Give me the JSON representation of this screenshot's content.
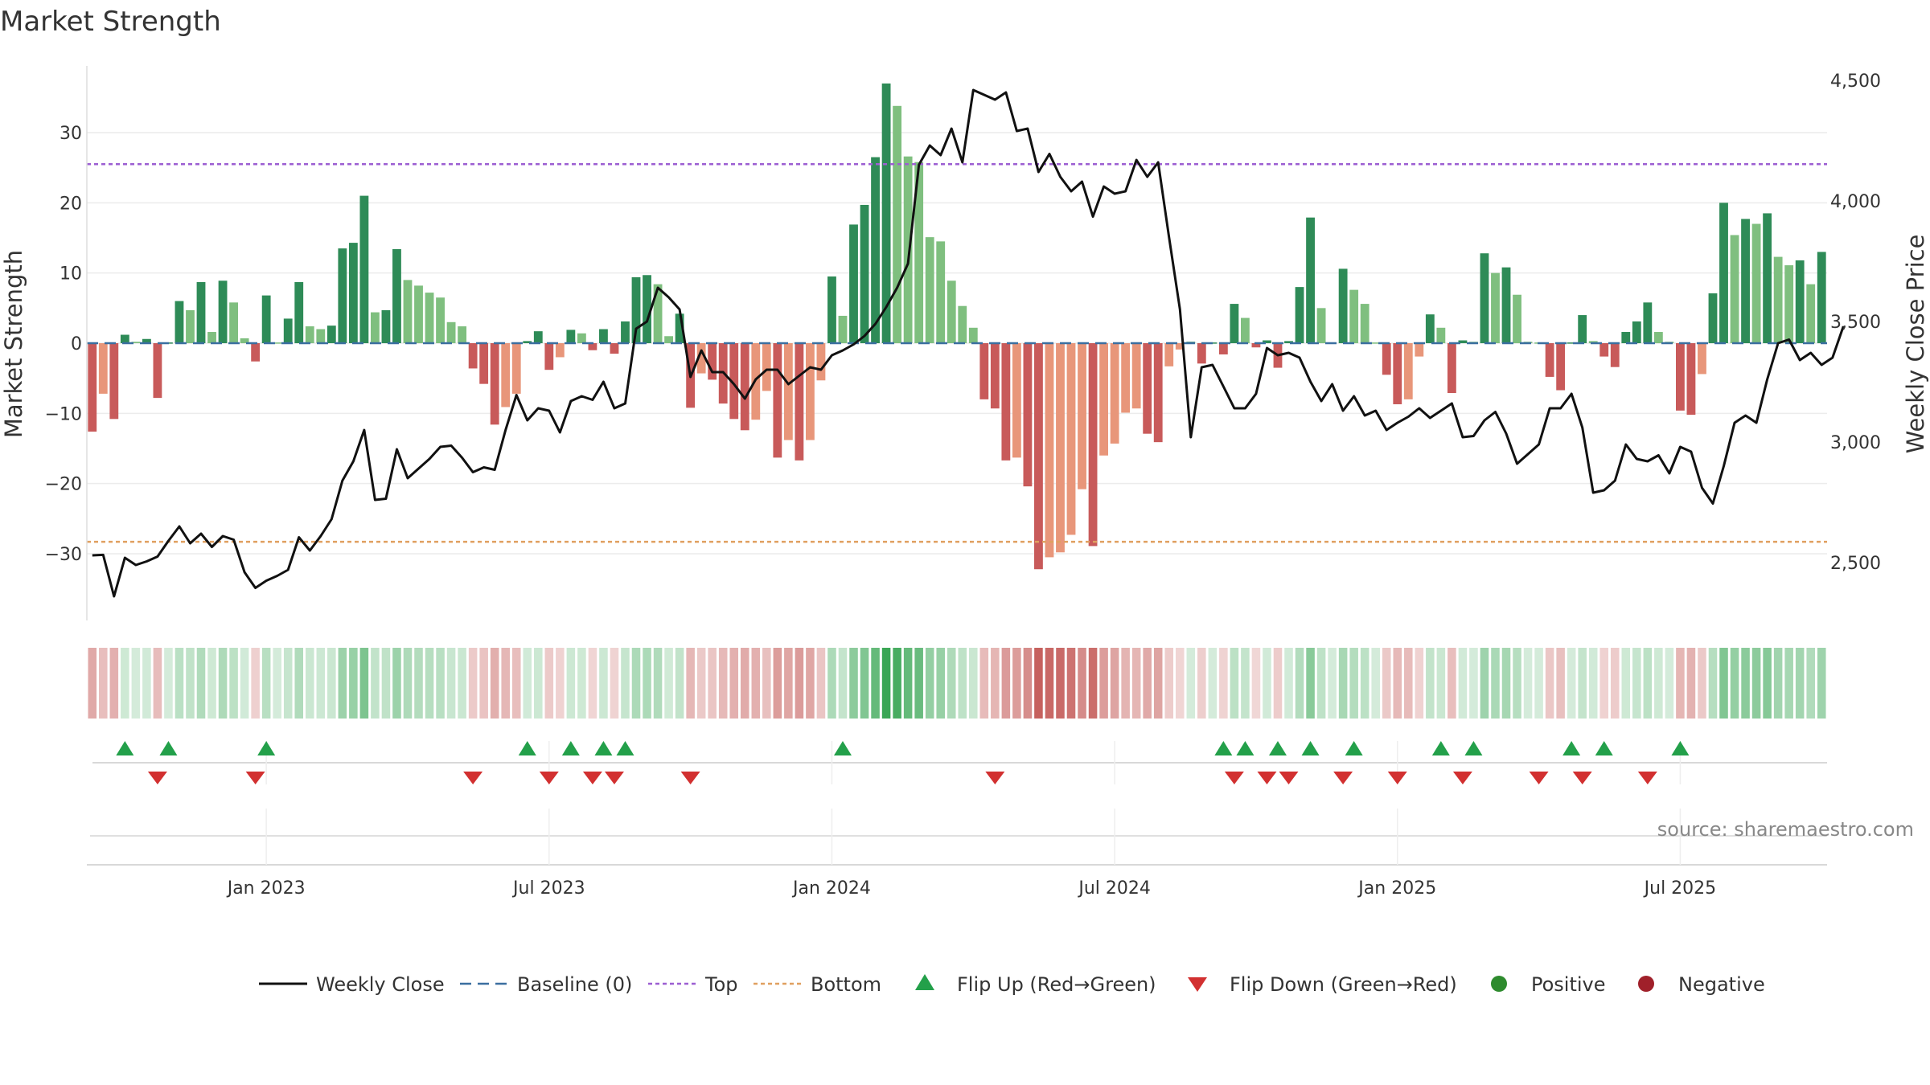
{
  "chart_data": {
    "type": "bar",
    "title": "Market Strength",
    "ylabel_left": "Market Strength",
    "ylabel_right": "Weekly Close Price",
    "y_left_range": [
      -39.5,
      39.5
    ],
    "y_left_ticks": [
      30,
      20,
      10,
      0,
      -10,
      -20,
      -30
    ],
    "y_left_tick_labels": [
      "30",
      "20",
      "10",
      "0",
      "−10",
      "−20",
      "−30"
    ],
    "y_right_range": [
      2260,
      4560
    ],
    "y_right_ticks": [
      4500,
      4000,
      3500,
      3000,
      2500
    ],
    "y_right_tick_labels": [
      "4,500",
      "4,000",
      "3,500",
      "3,000",
      "2,500"
    ],
    "x_ticks": [
      "Jan 2023",
      "Jul 2023",
      "Jan 2024",
      "Jul 2024",
      "Jan 2025",
      "Jul 2025"
    ],
    "x_tick_weeks": [
      16,
      42,
      68,
      94,
      120,
      146
    ],
    "top_threshold": 25.5,
    "bottom_threshold": -28.3,
    "grid": true,
    "strength": [
      -12.6,
      -7.2,
      -10.8,
      1.2,
      0.2,
      0.6,
      -7.8,
      0.1,
      6.0,
      4.7,
      8.7,
      1.6,
      8.9,
      5.8,
      0.7,
      -2.6,
      6.8,
      0.1,
      3.5,
      8.7,
      2.4,
      2.0,
      2.5,
      13.5,
      14.3,
      21.0,
      4.4,
      4.7,
      13.4,
      9.0,
      8.2,
      7.2,
      6.5,
      3.0,
      2.4,
      -3.6,
      -5.8,
      -11.6,
      -9.1,
      -7.2,
      0.3,
      1.7,
      -3.8,
      -2.0,
      1.9,
      1.4,
      -1.0,
      2.0,
      -1.5,
      3.1,
      9.4,
      9.7,
      8.4,
      1.0,
      4.2,
      -9.2,
      -4.3,
      -5.2,
      -8.6,
      -10.8,
      -12.4,
      -10.9,
      -6.8,
      -16.3,
      -13.8,
      -16.7,
      -13.8,
      -5.3,
      9.5,
      3.9,
      16.9,
      19.7,
      26.5,
      37.0,
      33.8,
      26.6,
      25.8,
      15.1,
      14.5,
      8.9,
      5.3,
      2.2,
      -8.0,
      -9.3,
      -16.7,
      -16.3,
      -20.4,
      -32.2,
      -30.5,
      -29.8,
      -27.3,
      -20.8,
      -28.9,
      -16.0,
      -14.3,
      -9.9,
      -9.3,
      -12.9,
      -14.1,
      -3.3,
      -0.9,
      0.2,
      -2.9,
      0.1,
      -1.6,
      5.6,
      3.6,
      -0.6,
      0.4,
      -3.5,
      0.3,
      8.0,
      17.9,
      5.0,
      0.1,
      10.6,
      7.6,
      5.6,
      0.1,
      -4.5,
      -8.7,
      -8.0,
      -1.9,
      4.1,
      2.2,
      -7.1,
      0.4,
      0.2,
      12.8,
      10.0,
      10.8,
      6.9,
      0.2,
      0.1,
      -4.8,
      -6.7,
      0.1,
      4.0,
      0.3,
      -1.9,
      -3.4,
      1.6,
      3.1,
      5.8,
      1.6,
      0.2,
      -9.6,
      -10.2,
      -4.4,
      7.1,
      20.0,
      15.4,
      17.7,
      17.0,
      18.5,
      12.3,
      11.1,
      11.8,
      8.4,
      13.0
    ],
    "weekly_close": [
      2530,
      2532,
      2360,
      2520,
      2490,
      2505,
      2525,
      2590,
      2650,
      2580,
      2620,
      2565,
      2610,
      2595,
      2460,
      2395,
      2425,
      2445,
      2470,
      2605,
      2550,
      2610,
      2680,
      2840,
      2920,
      3050,
      2760,
      2765,
      2970,
      2850,
      2890,
      2930,
      2980,
      2985,
      2935,
      2875,
      2895,
      2885,
      3050,
      3195,
      3090,
      3140,
      3130,
      3040,
      3170,
      3190,
      3175,
      3250,
      3140,
      3160,
      3470,
      3500,
      3640,
      3600,
      3550,
      3270,
      3380,
      3290,
      3290,
      3240,
      3180,
      3260,
      3300,
      3300,
      3240,
      3275,
      3310,
      3300,
      3360,
      3380,
      3405,
      3440,
      3490,
      3560,
      3640,
      3740,
      4150,
      4230,
      4190,
      4300,
      4160,
      4460,
      4440,
      4420,
      4450,
      4290,
      4300,
      4120,
      4195,
      4100,
      4040,
      4080,
      3935,
      4060,
      4030,
      4040,
      4170,
      4100,
      4160,
      3850,
      3550,
      3020,
      3310,
      3320,
      3230,
      3140,
      3140,
      3200,
      3390,
      3360,
      3370,
      3350,
      3250,
      3170,
      3240,
      3130,
      3190,
      3110,
      3130,
      3050,
      3080,
      3105,
      3140,
      3100,
      3130,
      3160,
      3020,
      3025,
      3090,
      3125,
      3035,
      2910,
      2950,
      2990,
      3140,
      3140,
      3200,
      3060,
      2790,
      2800,
      2840,
      2990,
      2930,
      2920,
      2945,
      2870,
      2980,
      2960,
      2810,
      2745,
      2900,
      3080,
      3110,
      3080,
      3260,
      3410,
      3425,
      3340,
      3370,
      3320,
      3350,
      3480
    ],
    "series": [
      {
        "name": "Weekly Close",
        "color": "#111111",
        "style": "solid"
      },
      {
        "name": "Baseline (0)",
        "color": "#3b6fa0",
        "style": "dashed"
      },
      {
        "name": "Top",
        "color": "#9c5fd2",
        "style": "dotted"
      },
      {
        "name": "Bottom",
        "color": "#e0a060",
        "style": "dotted"
      },
      {
        "name": "Flip Up (Red→Green)",
        "color": "#23a04a",
        "marker": "triangle-up"
      },
      {
        "name": "Flip Down (Green→Red)",
        "color": "#d23030",
        "marker": "triangle-down"
      },
      {
        "name": "Positive",
        "color": "#2e8b2e",
        "marker": "circle"
      },
      {
        "name": "Negative",
        "color": "#a0202a",
        "marker": "circle"
      }
    ],
    "legend_position": "bottom-center",
    "flip_up_weeks": [
      3,
      7,
      16,
      40,
      44,
      47,
      49,
      69,
      104,
      106,
      109,
      112,
      116,
      124,
      127,
      136,
      139,
      146
    ],
    "flip_down_weeks": [
      6,
      15,
      35,
      42,
      46,
      48,
      55,
      83,
      105,
      108,
      110,
      115,
      120,
      126,
      133,
      137,
      143
    ],
    "colors": {
      "bar_green_dark": "#2e8b57",
      "bar_green_light": "#7fbf7f",
      "bar_red_dark": "#c85a5a",
      "bar_red_light": "#e8967a",
      "strip_green": "#3aa655",
      "strip_red": "#c0504d"
    }
  },
  "source_text": "source: sharemaestro.com"
}
